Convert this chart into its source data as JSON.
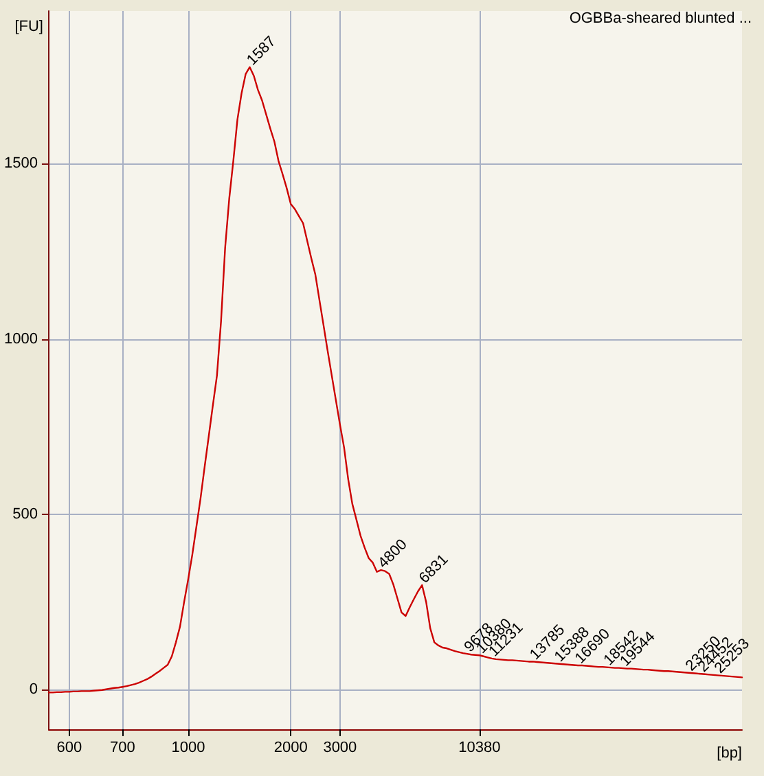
{
  "chart_data": {
    "type": "line",
    "title": "OGBBa-sheared blunted ...",
    "xlabel": "[bp]",
    "ylabel": "[FU]",
    "categories": [
      null,
      null,
      null,
      null,
      null,
      "600",
      null,
      null,
      null,
      null,
      null,
      null,
      null,
      null,
      null,
      null,
      null,
      null,
      "700",
      null,
      null,
      null,
      null,
      null,
      null,
      null,
      null,
      null,
      null,
      null,
      null,
      null,
      null,
      null,
      "1000",
      null,
      null,
      null,
      null,
      null,
      null,
      null,
      null,
      null,
      null,
      null,
      null,
      null,
      null,
      null,
      null,
      null,
      null,
      null,
      null,
      null,
      null,
      null,
      null,
      "2000",
      null,
      null,
      null,
      null,
      null,
      null,
      null,
      null,
      null,
      null,
      null,
      "3000",
      null,
      null,
      null,
      null,
      null,
      null,
      null,
      null,
      null,
      null,
      null,
      null,
      null,
      null,
      null,
      null,
      null,
      null,
      null,
      null,
      null,
      null,
      null,
      null,
      null,
      null,
      null,
      null,
      null,
      null,
      null,
      null,
      null,
      "10380",
      null,
      null,
      null,
      null,
      null,
      null,
      null,
      null,
      null,
      null,
      null,
      null,
      null,
      null,
      null,
      null,
      null,
      null,
      null,
      null,
      null,
      null,
      null,
      null,
      null,
      null,
      null,
      null,
      null,
      null,
      null,
      null,
      null,
      null,
      null,
      null,
      null,
      null,
      null,
      null,
      null,
      null,
      null,
      null,
      null,
      null,
      null,
      null,
      null,
      null,
      null,
      null,
      null,
      null,
      null,
      null,
      null,
      null,
      null,
      null,
      null,
      null,
      null,
      null
    ],
    "series": [
      {
        "color": "#cc0000",
        "values": [
          -8,
          -8,
          -7,
          -7,
          -6,
          -6,
          -5,
          -5,
          -4,
          -4,
          -4,
          -3,
          -2,
          -1,
          1,
          3,
          5,
          6,
          8,
          10,
          13,
          16,
          20,
          25,
          30,
          37,
          45,
          53,
          62,
          71,
          95,
          135,
          180,
          250,
          315,
          385,
          465,
          545,
          635,
          722,
          810,
          895,
          1050,
          1260,
          1400,
          1508,
          1626,
          1700,
          1755,
          1775,
          1750,
          1710,
          1680,
          1640,
          1600,
          1563,
          1508,
          1470,
          1430,
          1385,
          1370,
          1350,
          1330,
          1280,
          1230,
          1183,
          1110,
          1038,
          965,
          895,
          825,
          755,
          690,
          600,
          530,
          485,
          439,
          405,
          375,
          362,
          336,
          341,
          338,
          330,
          300,
          260,
          220,
          210,
          235,
          258,
          280,
          298,
          250,
          175,
          135,
          126,
          120,
          118,
          114,
          110,
          107,
          104,
          102,
          100,
          99,
          98,
          95,
          92,
          89,
          87,
          86,
          85,
          84,
          84,
          83,
          82,
          81,
          80,
          80,
          79,
          78,
          77,
          76,
          75,
          74,
          73,
          72,
          71,
          70,
          69,
          69,
          68,
          67,
          66,
          65,
          65,
          64,
          63,
          62,
          62,
          61,
          60,
          60,
          59,
          58,
          57,
          57,
          56,
          55,
          54,
          53,
          53,
          52,
          51,
          50,
          49,
          48,
          47,
          46,
          45,
          44,
          43,
          42,
          41,
          40,
          39,
          38,
          37,
          36,
          35
        ]
      }
    ],
    "annotations": [
      "1587",
      "4800",
      "6831",
      "9678",
      "10380",
      "11231",
      "13785",
      "15388",
      "16690",
      "18542",
      "19544",
      "23250",
      "24452",
      "25253"
    ],
    "ylim": [
      -113,
      1935
    ],
    "yticks": [
      0,
      500,
      1000,
      1500
    ],
    "grid": true,
    "marker": "none",
    "line_style": "solid"
  }
}
